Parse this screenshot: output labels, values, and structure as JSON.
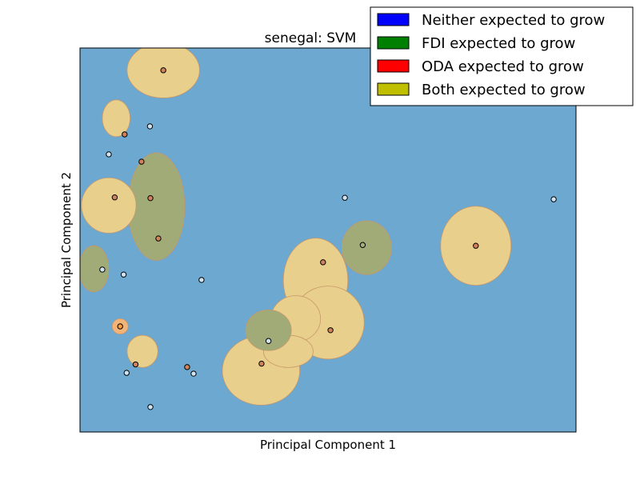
{
  "chart_data": {
    "type": "scatter",
    "title": "senegal: SVM",
    "xlabel": "Principal Component 1",
    "ylabel": "Principal Component 2",
    "xlim": [
      0,
      100
    ],
    "ylim": [
      0,
      100
    ],
    "grid": false,
    "ticks_shown": false,
    "legend": {
      "placement": "top-right",
      "entries": [
        {
          "label": "Neither expected to grow",
          "color": "#0000ff"
        },
        {
          "label": "FDI expected to grow",
          "color": "#008000"
        },
        {
          "label": "ODA expected to grow",
          "color": "#ff0000"
        },
        {
          "label": "Both expected to grow",
          "color": "#bfbf00"
        }
      ]
    },
    "colors": {
      "neither_region": "#6ca8cf",
      "both_region": "#e8cf8c",
      "fdi_region": "#a1ab78",
      "oda_region": "#f3b47a",
      "neither_point": "#cfe3f0",
      "both_point": "#d0825a",
      "fdi_point": "#a2ae7c",
      "oda_point": "#f5a040"
    },
    "regions": [
      {
        "class": "both",
        "shape": "ellipse",
        "cx": 16.8,
        "cy": 94.2,
        "rx": 7.3,
        "ry": 7.2
      },
      {
        "class": "both",
        "shape": "ellipse",
        "cx": 7.3,
        "cy": 81.7,
        "rx": 2.8,
        "ry": 4.8
      },
      {
        "class": "fdi",
        "shape": "ellipse",
        "cx": 15.4,
        "cy": 58.7,
        "rx": 5.7,
        "ry": 14.0
      },
      {
        "class": "both",
        "shape": "ellipse",
        "cx": 5.8,
        "cy": 59.0,
        "rx": 5.5,
        "ry": 7.2
      },
      {
        "class": "fdi",
        "shape": "ellipse",
        "cx": 2.8,
        "cy": 42.5,
        "rx": 3.0,
        "ry": 6.0
      },
      {
        "class": "oda",
        "shape": "ellipse",
        "cx": 8.1,
        "cy": 27.5,
        "rx": 1.6,
        "ry": 2.0
      },
      {
        "class": "both",
        "shape": "ellipse",
        "cx": 12.6,
        "cy": 21.0,
        "rx": 3.1,
        "ry": 4.2
      },
      {
        "class": "both",
        "shape": "ellipse",
        "cx": 47.5,
        "cy": 39.5,
        "rx": 6.5,
        "ry": 11.0
      },
      {
        "class": "both",
        "shape": "ellipse",
        "cx": 50.0,
        "cy": 28.5,
        "rx": 7.3,
        "ry": 9.5
      },
      {
        "class": "both",
        "shape": "ellipse",
        "cx": 43.5,
        "cy": 29.5,
        "rx": 5.0,
        "ry": 6.0
      },
      {
        "class": "both",
        "shape": "ellipse",
        "cx": 36.5,
        "cy": 16.0,
        "rx": 7.8,
        "ry": 9.0
      },
      {
        "class": "both",
        "shape": "ellipse",
        "cx": 42.0,
        "cy": 21.0,
        "rx": 5.0,
        "ry": 4.2
      },
      {
        "class": "fdi",
        "shape": "ellipse",
        "cx": 38.0,
        "cy": 26.5,
        "rx": 4.6,
        "ry": 5.3
      },
      {
        "class": "fdi",
        "shape": "ellipse",
        "cx": 57.8,
        "cy": 48.0,
        "rx": 5.0,
        "ry": 7.0
      },
      {
        "class": "both",
        "shape": "ellipse",
        "cx": 79.8,
        "cy": 48.5,
        "rx": 7.1,
        "ry": 10.3
      }
    ],
    "points": [
      {
        "x": 16.8,
        "y": 94.2,
        "class": "both"
      },
      {
        "x": 9.0,
        "y": 77.5,
        "class": "both"
      },
      {
        "x": 14.1,
        "y": 79.6,
        "class": "neither"
      },
      {
        "x": 5.8,
        "y": 72.3,
        "class": "neither"
      },
      {
        "x": 12.4,
        "y": 70.4,
        "class": "both"
      },
      {
        "x": 7.0,
        "y": 61.1,
        "class": "both"
      },
      {
        "x": 14.2,
        "y": 60.9,
        "class": "both"
      },
      {
        "x": 15.8,
        "y": 50.4,
        "class": "both"
      },
      {
        "x": 4.5,
        "y": 42.3,
        "class": "neither"
      },
      {
        "x": 8.8,
        "y": 41.0,
        "class": "neither"
      },
      {
        "x": 24.5,
        "y": 39.6,
        "class": "neither"
      },
      {
        "x": 8.1,
        "y": 27.5,
        "class": "oda"
      },
      {
        "x": 11.2,
        "y": 17.6,
        "class": "both"
      },
      {
        "x": 9.4,
        "y": 15.4,
        "class": "neither"
      },
      {
        "x": 21.6,
        "y": 16.9,
        "class": "both"
      },
      {
        "x": 22.9,
        "y": 15.2,
        "class": "neither"
      },
      {
        "x": 14.2,
        "y": 6.5,
        "class": "neither"
      },
      {
        "x": 53.4,
        "y": 61.0,
        "class": "neither"
      },
      {
        "x": 95.5,
        "y": 60.6,
        "class": "neither"
      },
      {
        "x": 57.0,
        "y": 48.7,
        "class": "fdi"
      },
      {
        "x": 79.8,
        "y": 48.5,
        "class": "both"
      },
      {
        "x": 49.0,
        "y": 44.2,
        "class": "both"
      },
      {
        "x": 50.5,
        "y": 26.5,
        "class": "both"
      },
      {
        "x": 38.0,
        "y": 23.7,
        "class": "neither"
      },
      {
        "x": 36.6,
        "y": 17.8,
        "class": "both"
      }
    ]
  }
}
